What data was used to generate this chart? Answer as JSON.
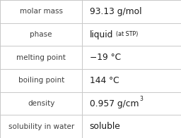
{
  "rows": [
    {
      "label": "molar mass",
      "value": "93.13 g/mol",
      "value_suffix": null,
      "value_super": null
    },
    {
      "label": "phase",
      "value": "liquid",
      "value_suffix": "(at STP)",
      "value_super": null
    },
    {
      "label": "melting point",
      "value": "−19 °C",
      "value_suffix": null,
      "value_super": null
    },
    {
      "label": "boiling point",
      "value": "144 °C",
      "value_suffix": null,
      "value_super": null
    },
    {
      "label": "density",
      "value": "0.957 g/cm",
      "value_suffix": null,
      "value_super": "3"
    },
    {
      "label": "solubility in water",
      "value": "soluble",
      "value_suffix": null,
      "value_super": null
    }
  ],
  "bg_color": "#ffffff",
  "grid_color": "#c8c8c8",
  "label_color": "#404040",
  "value_color": "#1a1a1a",
  "label_fontsize": 7.5,
  "value_fontsize": 8.8,
  "suffix_fontsize": 5.8,
  "super_fontsize": 5.5,
  "col_split": 0.455,
  "figwidth": 2.56,
  "figheight": 1.96,
  "dpi": 100
}
